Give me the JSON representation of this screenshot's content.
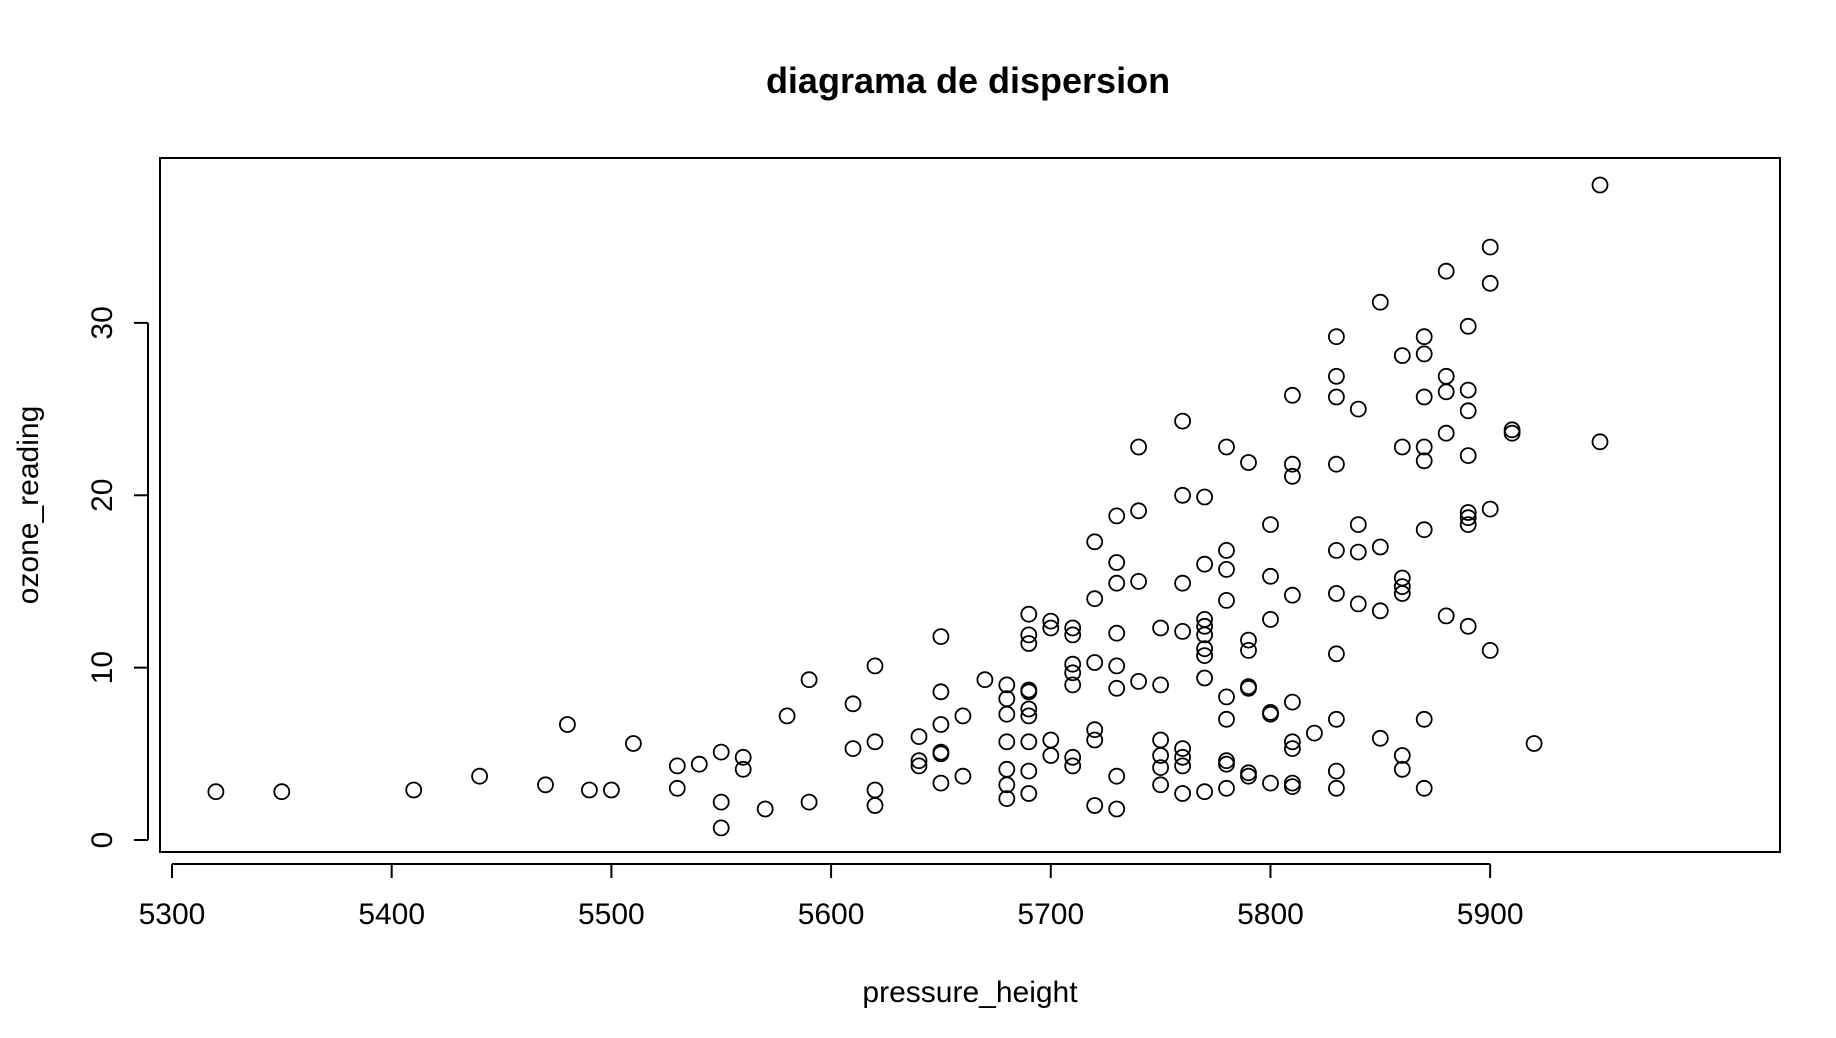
{
  "chart_data": {
    "type": "scatter",
    "title": "diagrama de dispersion",
    "xlabel": "pressure_height",
    "ylabel": "ozone_reading",
    "xlim": [
      5300,
      5950
    ],
    "ylim": [
      0,
      38
    ],
    "xticks": [
      5300,
      5400,
      5500,
      5600,
      5700,
      5800,
      5900
    ],
    "yticks": [
      0,
      10,
      20,
      30
    ],
    "grid": false,
    "legend": "none",
    "marker": "open-circle",
    "color": "#000000",
    "points": [
      [
        5320,
        2.8
      ],
      [
        5350,
        2.8
      ],
      [
        5410,
        2.9
      ],
      [
        5440,
        3.7
      ],
      [
        5470,
        3.2
      ],
      [
        5480,
        6.7
      ],
      [
        5490,
        2.9
      ],
      [
        5500,
        2.9
      ],
      [
        5510,
        5.6
      ],
      [
        5530,
        4.3
      ],
      [
        5530,
        3.0
      ],
      [
        5540,
        4.4
      ],
      [
        5550,
        5.1
      ],
      [
        5550,
        2.2
      ],
      [
        5550,
        0.7
      ],
      [
        5560,
        4.8
      ],
      [
        5560,
        4.1
      ],
      [
        5570,
        1.8
      ],
      [
        5580,
        7.2
      ],
      [
        5590,
        9.3
      ],
      [
        5590,
        2.2
      ],
      [
        5610,
        7.9
      ],
      [
        5610,
        5.3
      ],
      [
        5620,
        10.1
      ],
      [
        5620,
        5.7
      ],
      [
        5620,
        2.9
      ],
      [
        5620,
        2.0
      ],
      [
        5640,
        6.0
      ],
      [
        5640,
        4.6
      ],
      [
        5640,
        4.3
      ],
      [
        5650,
        11.8
      ],
      [
        5650,
        8.6
      ],
      [
        5650,
        6.7
      ],
      [
        5650,
        5.1
      ],
      [
        5650,
        5.0
      ],
      [
        5650,
        3.3
      ],
      [
        5660,
        7.2
      ],
      [
        5660,
        3.7
      ],
      [
        5670,
        9.3
      ],
      [
        5680,
        9.0
      ],
      [
        5680,
        8.2
      ],
      [
        5680,
        7.3
      ],
      [
        5680,
        5.7
      ],
      [
        5680,
        4.1
      ],
      [
        5680,
        3.2
      ],
      [
        5680,
        2.4
      ],
      [
        5690,
        13.1
      ],
      [
        5690,
        11.9
      ],
      [
        5690,
        11.4
      ],
      [
        5690,
        8.7
      ],
      [
        5690,
        8.6
      ],
      [
        5690,
        7.6
      ],
      [
        5690,
        7.2
      ],
      [
        5690,
        5.7
      ],
      [
        5690,
        4.0
      ],
      [
        5690,
        2.7
      ],
      [
        5700,
        12.7
      ],
      [
        5700,
        12.3
      ],
      [
        5700,
        5.8
      ],
      [
        5700,
        4.9
      ],
      [
        5710,
        12.3
      ],
      [
        5710,
        11.9
      ],
      [
        5710,
        10.2
      ],
      [
        5710,
        9.7
      ],
      [
        5710,
        9.0
      ],
      [
        5710,
        4.8
      ],
      [
        5710,
        4.3
      ],
      [
        5720,
        17.3
      ],
      [
        5720,
        14.0
      ],
      [
        5720,
        10.3
      ],
      [
        5720,
        6.4
      ],
      [
        5720,
        5.8
      ],
      [
        5720,
        2.0
      ],
      [
        5730,
        18.8
      ],
      [
        5730,
        16.1
      ],
      [
        5730,
        14.9
      ],
      [
        5730,
        12.0
      ],
      [
        5730,
        10.1
      ],
      [
        5730,
        8.8
      ],
      [
        5730,
        3.7
      ],
      [
        5730,
        1.8
      ],
      [
        5740,
        22.8
      ],
      [
        5740,
        19.1
      ],
      [
        5740,
        15.0
      ],
      [
        5740,
        9.2
      ],
      [
        5750,
        12.3
      ],
      [
        5750,
        9.0
      ],
      [
        5750,
        5.8
      ],
      [
        5750,
        4.9
      ],
      [
        5750,
        4.2
      ],
      [
        5750,
        3.2
      ],
      [
        5760,
        24.3
      ],
      [
        5760,
        20.0
      ],
      [
        5760,
        14.9
      ],
      [
        5760,
        12.1
      ],
      [
        5760,
        5.3
      ],
      [
        5760,
        4.8
      ],
      [
        5760,
        4.3
      ],
      [
        5760,
        2.7
      ],
      [
        5770,
        19.9
      ],
      [
        5770,
        16.0
      ],
      [
        5770,
        12.8
      ],
      [
        5770,
        12.4
      ],
      [
        5770,
        11.9
      ],
      [
        5770,
        11.1
      ],
      [
        5770,
        10.7
      ],
      [
        5770,
        9.4
      ],
      [
        5770,
        2.8
      ],
      [
        5780,
        22.8
      ],
      [
        5780,
        16.8
      ],
      [
        5780,
        15.7
      ],
      [
        5780,
        13.9
      ],
      [
        5780,
        8.3
      ],
      [
        5780,
        7.0
      ],
      [
        5780,
        4.6
      ],
      [
        5780,
        4.4
      ],
      [
        5780,
        3.0
      ],
      [
        5790,
        21.9
      ],
      [
        5790,
        11.6
      ],
      [
        5790,
        11.0
      ],
      [
        5790,
        8.9
      ],
      [
        5790,
        8.8
      ],
      [
        5790,
        3.9
      ],
      [
        5790,
        3.7
      ],
      [
        5800,
        18.3
      ],
      [
        5800,
        15.3
      ],
      [
        5800,
        12.8
      ],
      [
        5800,
        7.4
      ],
      [
        5800,
        7.3
      ],
      [
        5800,
        3.3
      ],
      [
        5810,
        25.8
      ],
      [
        5810,
        21.8
      ],
      [
        5810,
        21.1
      ],
      [
        5810,
        14.2
      ],
      [
        5810,
        8.0
      ],
      [
        5810,
        5.7
      ],
      [
        5810,
        5.3
      ],
      [
        5810,
        3.3
      ],
      [
        5810,
        3.1
      ],
      [
        5820,
        6.2
      ],
      [
        5830,
        29.2
      ],
      [
        5830,
        26.9
      ],
      [
        5830,
        25.7
      ],
      [
        5830,
        21.8
      ],
      [
        5830,
        16.8
      ],
      [
        5830,
        14.3
      ],
      [
        5830,
        10.8
      ],
      [
        5830,
        7.0
      ],
      [
        5830,
        4.0
      ],
      [
        5830,
        3.0
      ],
      [
        5840,
        25.0
      ],
      [
        5840,
        18.3
      ],
      [
        5840,
        16.7
      ],
      [
        5840,
        13.7
      ],
      [
        5850,
        31.2
      ],
      [
        5850,
        17.0
      ],
      [
        5850,
        13.3
      ],
      [
        5850,
        5.9
      ],
      [
        5860,
        28.1
      ],
      [
        5860,
        22.8
      ],
      [
        5860,
        15.2
      ],
      [
        5860,
        14.7
      ],
      [
        5860,
        14.3
      ],
      [
        5860,
        4.9
      ],
      [
        5860,
        4.1
      ],
      [
        5870,
        29.2
      ],
      [
        5870,
        28.2
      ],
      [
        5870,
        25.7
      ],
      [
        5870,
        22.8
      ],
      [
        5870,
        22.0
      ],
      [
        5870,
        18.0
      ],
      [
        5870,
        7.0
      ],
      [
        5870,
        3.0
      ],
      [
        5880,
        33.0
      ],
      [
        5880,
        26.9
      ],
      [
        5880,
        26.0
      ],
      [
        5880,
        23.6
      ],
      [
        5880,
        13.0
      ],
      [
        5890,
        29.8
      ],
      [
        5890,
        26.1
      ],
      [
        5890,
        24.9
      ],
      [
        5890,
        22.3
      ],
      [
        5890,
        19.0
      ],
      [
        5890,
        18.7
      ],
      [
        5890,
        18.3
      ],
      [
        5890,
        12.4
      ],
      [
        5900,
        34.4
      ],
      [
        5900,
        32.3
      ],
      [
        5900,
        19.2
      ],
      [
        5900,
        11.0
      ],
      [
        5910,
        23.8
      ],
      [
        5910,
        23.6
      ],
      [
        5920,
        5.6
      ],
      [
        5950,
        38.0
      ],
      [
        5950,
        23.1
      ]
    ]
  }
}
